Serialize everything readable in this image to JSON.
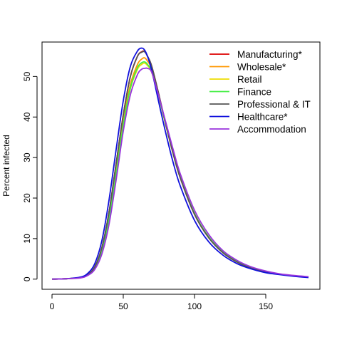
{
  "chart_data": {
    "type": "line",
    "title": "",
    "xlabel": "",
    "ylabel": "Percent infected",
    "xlim": [
      -7,
      188
    ],
    "ylim": [
      -2.5,
      58.5
    ],
    "x_ticks": [
      0,
      50,
      100,
      150
    ],
    "y_ticks": [
      0,
      10,
      20,
      30,
      40,
      50
    ],
    "grid": false,
    "legend_position": "top-right",
    "x": [
      0,
      10,
      20,
      25,
      30,
      35,
      40,
      45,
      50,
      55,
      60,
      63,
      65,
      67,
      70,
      75,
      80,
      85,
      90,
      100,
      110,
      120,
      130,
      140,
      150,
      160,
      170,
      180
    ],
    "series": [
      {
        "name": "Manufacturing*",
        "color": "#DD0000",
        "values": [
          0,
          0.1,
          0.4,
          1.1,
          3.0,
          7.8,
          16.5,
          28.5,
          40.5,
          50.0,
          55.0,
          56.1,
          56.2,
          55.0,
          52.5,
          45.5,
          38.0,
          31.0,
          25.0,
          16.0,
          10.2,
          6.5,
          4.2,
          2.7,
          1.8,
          1.2,
          0.8,
          0.5
        ]
      },
      {
        "name": "Wholesale*",
        "color": "#FF9900",
        "values": [
          0,
          0.1,
          0.4,
          1.0,
          2.8,
          7.2,
          15.5,
          27.0,
          39.0,
          48.0,
          53.0,
          54.3,
          54.6,
          53.8,
          51.8,
          45.0,
          37.8,
          31.0,
          25.0,
          16.1,
          10.3,
          6.6,
          4.3,
          2.8,
          1.8,
          1.2,
          0.8,
          0.5
        ]
      },
      {
        "name": "Retail",
        "color": "#EEDD00",
        "values": [
          0,
          0.1,
          0.4,
          1.0,
          2.6,
          6.8,
          14.8,
          26.0,
          38.0,
          47.0,
          51.8,
          53.0,
          53.3,
          52.7,
          51.0,
          44.8,
          37.8,
          31.0,
          25.1,
          16.2,
          10.4,
          6.7,
          4.3,
          2.8,
          1.8,
          1.2,
          0.8,
          0.5
        ]
      },
      {
        "name": "Finance",
        "color": "#44EE44",
        "values": [
          0,
          0.1,
          0.4,
          1.0,
          2.6,
          6.8,
          14.8,
          26.0,
          38.0,
          47.2,
          52.2,
          53.4,
          53.6,
          53.0,
          51.2,
          44.9,
          37.9,
          31.1,
          25.1,
          16.2,
          10.4,
          6.7,
          4.3,
          2.8,
          1.8,
          1.2,
          0.8,
          0.5
        ]
      },
      {
        "name": "Professional & IT",
        "color": "#555555",
        "values": [
          0,
          0.1,
          0.4,
          1.1,
          3.0,
          7.8,
          16.5,
          28.5,
          40.5,
          50.0,
          55.0,
          56.0,
          56.1,
          55.0,
          52.5,
          45.5,
          38.0,
          31.0,
          25.0,
          16.0,
          10.2,
          6.5,
          4.2,
          2.7,
          1.8,
          1.2,
          0.8,
          0.5
        ]
      },
      {
        "name": "Healthcare*",
        "color": "#1111DD",
        "values": [
          0,
          0.1,
          0.5,
          1.4,
          3.8,
          9.5,
          19.5,
          32.0,
          44.0,
          52.5,
          56.3,
          57.0,
          56.5,
          55.0,
          51.5,
          43.5,
          35.8,
          28.8,
          23.0,
          14.5,
          9.2,
          5.9,
          3.8,
          2.5,
          1.6,
          1.1,
          0.7,
          0.4
        ]
      },
      {
        "name": "Accommodation",
        "color": "#9933DD",
        "values": [
          0,
          0.1,
          0.3,
          0.9,
          2.4,
          6.2,
          13.5,
          24.5,
          36.5,
          45.5,
          50.5,
          51.8,
          52.0,
          52.0,
          51.0,
          45.0,
          38.5,
          32.0,
          26.0,
          17.0,
          11.0,
          7.0,
          4.6,
          3.0,
          2.0,
          1.3,
          0.9,
          0.6
        ]
      }
    ]
  }
}
